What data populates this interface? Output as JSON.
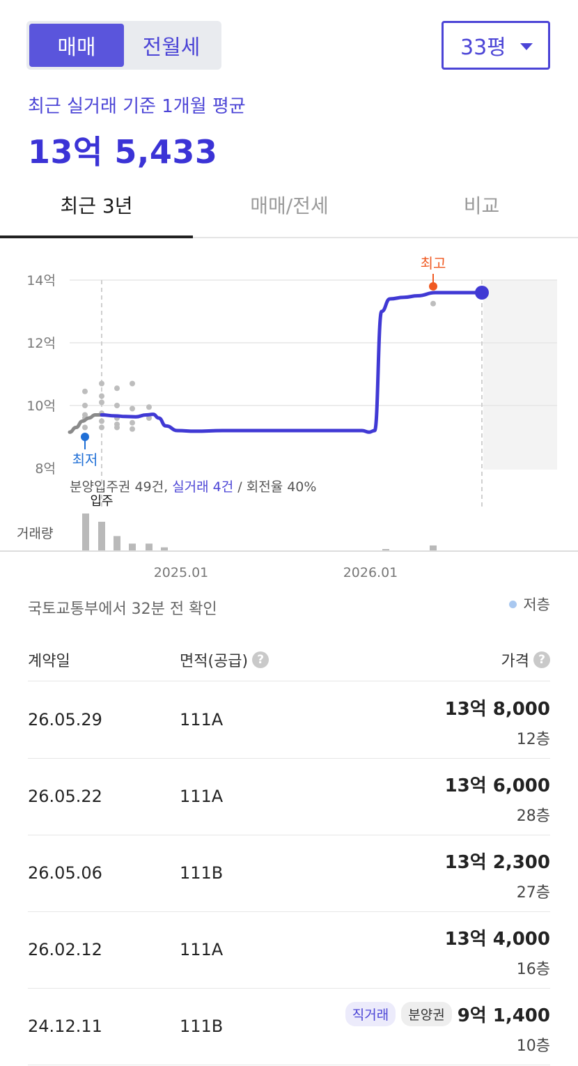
{
  "trade_toggle": {
    "buy": "매매",
    "rent": "전월세"
  },
  "area_select": {
    "value": "33평"
  },
  "summary": {
    "subtitle": "최근 실거래 기준 1개월 평균",
    "price": "13억 5,433"
  },
  "tabs": [
    {
      "label": "최근 3년"
    },
    {
      "label": "매매/전세"
    },
    {
      "label": "비교"
    }
  ],
  "chart_data": {
    "type": "line",
    "y_ticks": [
      "14억",
      "12억",
      "10억",
      "8억"
    ],
    "x_ticks": [
      "2025.01",
      "2026.01"
    ],
    "ylim": [
      8,
      14
    ],
    "markers": {
      "high": "최고",
      "low": "최저",
      "move_in": "입주"
    },
    "volume_label": "거래량",
    "stats_note": {
      "presale": "분양입주권 49건, ",
      "real": "실거래 4건",
      "turnover": " / 회전율 40%"
    },
    "series": [
      {
        "values": [
          9.15,
          9.3,
          9.5,
          9.6,
          9.7,
          9.7
        ]
      },
      {
        "values": [
          9.7,
          9.67,
          9.65,
          9.64,
          9.7,
          9.72,
          9.6,
          9.35,
          9.2,
          9.18,
          9.2,
          9.2,
          9.2,
          9.2,
          9.2,
          9.2,
          9.2,
          9.15,
          9.2,
          13.0,
          13.4,
          13.45,
          13.5,
          13.6,
          13.6,
          13.6
        ]
      }
    ],
    "scatter_values": [
      10.45,
      10.0,
      9.7,
      9.6,
      9.3,
      10.7,
      10.3,
      10.1,
      9.75,
      9.5,
      9.3,
      10.55,
      10.0,
      9.6,
      9.4,
      9.3,
      10.7,
      9.9,
      9.45,
      9.25,
      9.95,
      9.6,
      13.25
    ],
    "volume": [
      1.0,
      0.78,
      0.4,
      0.2,
      0.2,
      0.1,
      0.05,
      0.15
    ],
    "colors": {
      "main_line": "#4039d4",
      "early_line": "#8a8a8a",
      "high": "#f05a22",
      "low": "#1f6fd6",
      "dots": "#bdbdbd",
      "bars": "#b9b9b9"
    }
  },
  "status": {
    "refresh": "국토교통부에서 32분 전 확인",
    "legend": "저층"
  },
  "table": {
    "headers": {
      "date": "계약일",
      "area": "면적(공급)",
      "price": "가격"
    },
    "rows": [
      {
        "date": "26.05.29",
        "area": "111A",
        "price": "13억 8,000",
        "floor": "12층",
        "badges": []
      },
      {
        "date": "26.05.22",
        "area": "111A",
        "price": "13억 6,000",
        "floor": "28층",
        "badges": []
      },
      {
        "date": "26.05.06",
        "area": "111B",
        "price": "13억 2,300",
        "floor": "27층",
        "badges": []
      },
      {
        "date": "26.02.12",
        "area": "111A",
        "price": "13억 4,000",
        "floor": "16층",
        "badges": []
      },
      {
        "date": "24.12.11",
        "area": "111B",
        "price": "9억 1,400",
        "floor": "10층",
        "badges": [
          "직거래",
          "분양권"
        ]
      }
    ]
  }
}
